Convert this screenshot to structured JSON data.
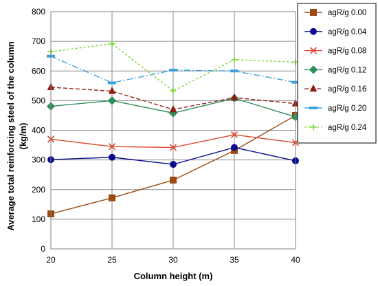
{
  "chart_data": {
    "type": "line",
    "xlabel": "Column height (m)",
    "ylabel_lines": [
      "Average total reinforcing steel of  the column",
      "(kg/m)"
    ],
    "x": [
      20,
      25,
      30,
      35,
      40
    ],
    "xlim": [
      20,
      40
    ],
    "ylim": [
      0,
      800
    ],
    "yticks": [
      0,
      100,
      200,
      300,
      400,
      500,
      600,
      700,
      800
    ],
    "grid": true,
    "legend_position": "right",
    "series": [
      {
        "name": "agR/g 0.00",
        "values": [
          118,
          172,
          232,
          332,
          450
        ],
        "color": "#9c4a12",
        "marker": "square",
        "dash": "solid"
      },
      {
        "name": "agR/g 0.04",
        "values": [
          301,
          309,
          285,
          342,
          297
        ],
        "color": "#0b0b8f",
        "marker": "circle",
        "dash": "solid"
      },
      {
        "name": "agR/g 0.08",
        "values": [
          370,
          345,
          342,
          385,
          358
        ],
        "color": "#e0442c",
        "marker": "x",
        "dash": "solid"
      },
      {
        "name": "agR/g 0.12",
        "values": [
          481,
          500,
          458,
          508,
          445
        ],
        "color": "#2f8f5a",
        "marker": "diamond",
        "dash": "solid"
      },
      {
        "name": "agR/g 0.16",
        "values": [
          545,
          532,
          470,
          510,
          490
        ],
        "color": "#8f1f12",
        "marker": "triangle",
        "dash": "dash"
      },
      {
        "name": "agR/g 0.20",
        "values": [
          650,
          560,
          603,
          600,
          562
        ],
        "color": "#3ba0dd",
        "marker": "dashmark",
        "dash": "dashdot"
      },
      {
        "name": "agR/g 0.24",
        "values": [
          665,
          692,
          533,
          638,
          630
        ],
        "color": "#72d62f",
        "marker": "plus",
        "dash": "dot"
      }
    ]
  }
}
